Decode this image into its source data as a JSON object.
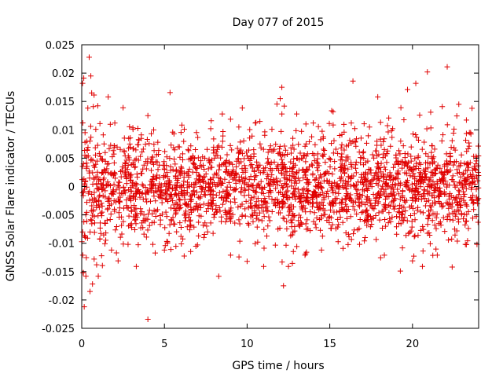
{
  "chart_data": {
    "type": "scatter",
    "title": "Day 077 of 2015",
    "xlabel": "GPS time / hours",
    "ylabel": "GNSS Solar Flare indicator / TECUs",
    "xlim": [
      0,
      24
    ],
    "ylim": [
      -0.025,
      0.025
    ],
    "x_ticks": [
      0,
      5,
      10,
      15,
      20
    ],
    "x_tick_labels": [
      "0",
      "5",
      "10",
      "15",
      "20"
    ],
    "y_ticks": [
      -0.025,
      -0.02,
      -0.015,
      -0.01,
      -0.005,
      0,
      0.005,
      0.01,
      0.015,
      0.02,
      0.025
    ],
    "y_tick_labels": [
      "-0.025",
      "-0.02",
      "-0.015",
      "-0.01",
      "-0.005",
      "0",
      "0.005",
      "0.01",
      "0.015",
      "0.02",
      "0.025"
    ],
    "grid": false,
    "legend": "none",
    "marker": "plus",
    "marker_color": "#e00000",
    "series": [
      {
        "points": [
          [
            0.05,
            0.0182
          ],
          [
            0.1,
            -0.0152
          ],
          [
            0.15,
            -0.0212
          ],
          [
            0.2,
            0.0095
          ],
          [
            0.25,
            -0.0158
          ],
          [
            0.3,
            0.0052
          ],
          [
            0.35,
            -0.0091
          ],
          [
            0.45,
            0.0228
          ],
          [
            0.5,
            -0.0185
          ],
          [
            0.55,
            0.0195
          ],
          [
            0.6,
            0.0165
          ],
          [
            0.65,
            -0.0172
          ],
          [
            0.7,
            0.0141
          ],
          [
            0.75,
            -0.0128
          ],
          [
            0.85,
            0.0101
          ],
          [
            0.9,
            -0.0138
          ],
          [
            1.0,
            -0.0158
          ],
          [
            1.1,
            0.0111
          ],
          [
            1.2,
            -0.0122
          ],
          [
            1.3,
            0.0091
          ],
          [
            1.4,
            -0.0101
          ],
          [
            1.6,
            0.0158
          ],
          [
            1.8,
            -0.0112
          ],
          [
            2.0,
            0.0112
          ],
          [
            2.2,
            -0.0131
          ],
          [
            2.5,
            0.0139
          ],
          [
            2.8,
            -0.0102
          ],
          [
            3.1,
            0.0101
          ],
          [
            3.3,
            -0.0141
          ],
          [
            3.6,
            0.0091
          ],
          [
            4.0,
            0.0125
          ],
          [
            4.0,
            -0.0234
          ],
          [
            4.3,
            -0.0102
          ],
          [
            4.6,
            0.0078
          ],
          [
            5.0,
            -0.0112
          ],
          [
            5.5,
            0.0096
          ],
          [
            6.2,
            0.0101
          ],
          [
            7.0,
            -0.0103
          ],
          [
            7.8,
            0.0102
          ],
          [
            8.5,
            0.0128
          ],
          [
            9.0,
            -0.0121
          ],
          [
            9.5,
            0.0105
          ],
          [
            10.0,
            -0.0132
          ],
          [
            10.5,
            0.0112
          ],
          [
            11.0,
            -0.0141
          ],
          [
            11.5,
            0.0101
          ],
          [
            12.0,
            0.0155
          ],
          [
            12.1,
            0.0175
          ],
          [
            12.2,
            -0.0175
          ],
          [
            12.5,
            -0.0141
          ],
          [
            13.0,
            0.0128
          ],
          [
            13.5,
            -0.0121
          ],
          [
            14.0,
            0.0112
          ],
          [
            14.5,
            -0.0112
          ],
          [
            15.2,
            0.0132
          ],
          [
            15.8,
            -0.0109
          ],
          [
            16.3,
            0.0112
          ],
          [
            16.4,
            0.0186
          ],
          [
            16.8,
            -0.0102
          ],
          [
            17.4,
            0.0105
          ],
          [
            17.9,
            0.0158
          ],
          [
            18.3,
            -0.0121
          ],
          [
            18.8,
            0.0102
          ],
          [
            19.3,
            0.0139
          ],
          [
            19.7,
            0.0171
          ],
          [
            20.0,
            -0.0131
          ],
          [
            20.2,
            0.0182
          ],
          [
            20.6,
            -0.0141
          ],
          [
            20.9,
            0.0202
          ],
          [
            21.1,
            0.0131
          ],
          [
            21.5,
            -0.0121
          ],
          [
            21.8,
            0.0141
          ],
          [
            22.1,
            0.0211
          ],
          [
            22.4,
            -0.0142
          ],
          [
            22.8,
            0.0145
          ],
          [
            23.2,
            -0.0102
          ],
          [
            23.6,
            0.0138
          ],
          [
            23.9,
            -0.0102
          ]
        ]
      }
    ],
    "dense_band": {
      "note": "",
      "seed": 77,
      "count": 2400,
      "x_range": [
        0,
        24
      ],
      "core_sigma": 0.0045,
      "edge_sigma": 0.0085,
      "edge_width_hours": 1.2
    }
  }
}
